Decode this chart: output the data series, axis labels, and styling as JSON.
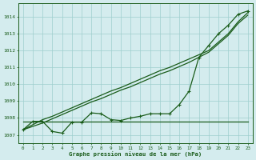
{
  "title": "Graphe pression niveau de la mer (hPa)",
  "x_values": [
    0,
    1,
    2,
    3,
    4,
    5,
    6,
    7,
    8,
    9,
    10,
    11,
    12,
    13,
    14,
    15,
    16,
    17,
    18,
    19,
    20,
    21,
    22,
    23
  ],
  "line_hourly": [
    1007.3,
    1007.8,
    1007.8,
    1007.2,
    1007.1,
    1007.75,
    1007.75,
    1008.3,
    1008.25,
    1007.9,
    1007.85,
    1008.0,
    1008.1,
    1008.25,
    1008.25,
    1008.25,
    1008.8,
    1009.6,
    1011.6,
    1012.3,
    1013.0,
    1013.5,
    1014.15,
    1014.35
  ],
  "line_flat": [
    1007.8,
    1007.8,
    1007.8,
    1007.8,
    1007.8,
    1007.8,
    1007.8,
    1007.8,
    1007.8,
    1007.8,
    1007.8,
    1007.8,
    1007.8,
    1007.8,
    1007.8,
    1007.8,
    1007.8,
    1007.8,
    1007.8,
    1007.8,
    1007.8,
    1007.8,
    1007.8,
    1007.8
  ],
  "line_diag1": [
    1007.3,
    1007.6,
    1007.9,
    1008.1,
    1008.35,
    1008.6,
    1008.85,
    1009.1,
    1009.35,
    1009.6,
    1009.8,
    1010.05,
    1010.3,
    1010.55,
    1010.8,
    1011.0,
    1011.25,
    1011.5,
    1011.75,
    1012.0,
    1012.5,
    1013.0,
    1013.7,
    1014.25
  ],
  "line_diag2": [
    1007.3,
    1007.5,
    1007.7,
    1007.95,
    1008.2,
    1008.45,
    1008.7,
    1008.95,
    1009.15,
    1009.4,
    1009.65,
    1009.85,
    1010.1,
    1010.35,
    1010.6,
    1010.8,
    1011.05,
    1011.3,
    1011.6,
    1011.9,
    1012.4,
    1012.9,
    1013.6,
    1014.1
  ],
  "ylim": [
    1006.5,
    1014.8
  ],
  "yticks": [
    1007,
    1008,
    1009,
    1010,
    1011,
    1012,
    1013,
    1014
  ],
  "line_color": "#1a5c1a",
  "bg_color": "#d4ecee",
  "grid_color": "#9ecece",
  "label_color": "#1a5c1a",
  "title_color": "#1a5c1a",
  "marker": "+",
  "markersize": 3.0,
  "linewidth": 0.9
}
